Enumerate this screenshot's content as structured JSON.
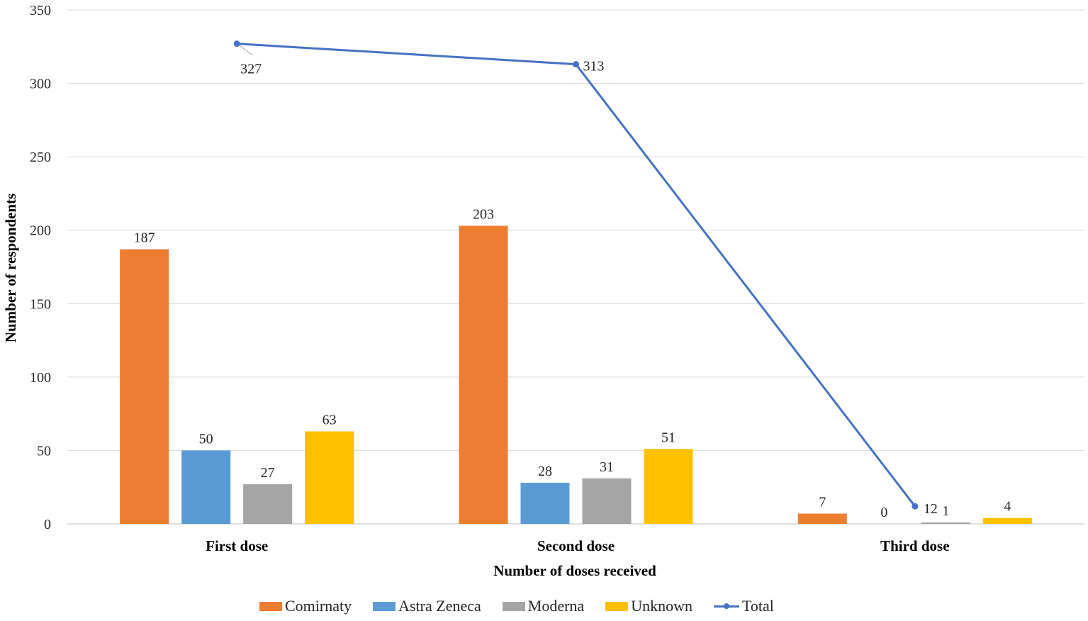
{
  "chart_data": {
    "type": "bar",
    "title": "",
    "xlabel": "Number  of doses received",
    "ylabel": "Number  of respondents",
    "categories": [
      "First dose",
      "Second dose",
      "Third dose"
    ],
    "ylim": [
      0,
      350
    ],
    "yticks": [
      0,
      50,
      100,
      150,
      200,
      250,
      300,
      350
    ],
    "grid": true,
    "legend_position": "bottom",
    "series": [
      {
        "name": "Comirnaty",
        "type": "bar",
        "color": "#ED7D31",
        "values": [
          187,
          203,
          7
        ]
      },
      {
        "name": "Astra Zeneca",
        "type": "bar",
        "color": "#5B9BD5",
        "values": [
          50,
          28,
          0
        ]
      },
      {
        "name": "Moderna",
        "type": "bar",
        "color": "#A5A5A5",
        "values": [
          27,
          31,
          1
        ]
      },
      {
        "name": "Unknown",
        "type": "bar",
        "color": "#FFC000",
        "values": [
          63,
          51,
          4
        ]
      },
      {
        "name": "Total",
        "type": "line",
        "color": "#4472C4",
        "values": [
          327,
          313,
          12
        ]
      }
    ],
    "data_label_text": {
      "Moderna": [
        "27",
        "31",
        "1"
      ],
      "Total": [
        "327",
        "313",
        "12"
      ]
    }
  }
}
